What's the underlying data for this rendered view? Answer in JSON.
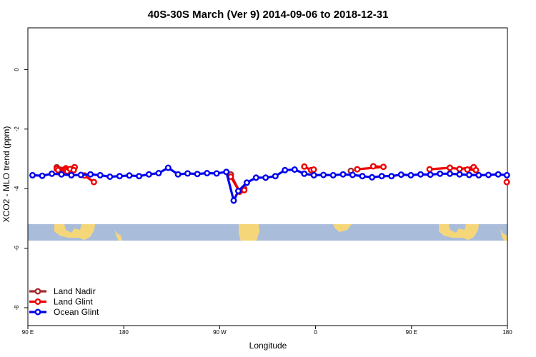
{
  "chart_data": {
    "type": "line",
    "title": "40S-30S March (Ver 9)   2014-09-06 to 2018-12-31",
    "xlabel": "Longitude",
    "ylabel": "XCO2 - MLO trend (ppm)",
    "xlim": [
      90,
      450
    ],
    "ylim": [
      -8.6,
      1.4
    ],
    "x_ticks": [
      {
        "value": 90,
        "label": "90 E"
      },
      {
        "value": 162,
        "label": "180"
      },
      {
        "value": 234,
        "label": "90 W"
      },
      {
        "value": 306,
        "label": "0"
      },
      {
        "value": 378,
        "label": "90 E"
      },
      {
        "value": 450,
        "label": "180"
      }
    ],
    "y_ticks": [
      {
        "value": 0,
        "label": "0"
      },
      {
        "value": -2,
        "label": "-2"
      },
      {
        "value": -4,
        "label": "-4"
      },
      {
        "value": -6,
        "label": "-6"
      },
      {
        "value": -8,
        "label": "-8"
      }
    ],
    "legend_position": "bottom-left",
    "land_color": "#f5d77a",
    "ocean_color": "#a9bddb",
    "series": [
      {
        "name": "Land Nadir",
        "color": "#a52a2a",
        "segments": [
          [
            [
              111.7,
              -3.28
            ],
            [
              118.5,
              -3.32
            ],
            [
              125.1,
              -3.28
            ]
          ],
          [
            [
              242.3,
              -3.52
            ],
            [
              248.9,
              -4.1
            ],
            [
              252.4,
              -4.0
            ]
          ],
          [
            [
              332.5,
              -3.4
            ]
          ],
          [
            [
              406.8,
              -3.3
            ],
            [
              414.1,
              -3.34
            ],
            [
              424.7,
              -3.28
            ]
          ]
        ]
      },
      {
        "name": "Land Glint",
        "color": "#ee0000",
        "segments": [
          [
            [
              111.7,
              -3.33
            ],
            [
              118.5,
              -3.32
            ],
            [
              125.1,
              -3.28
            ]
          ],
          [
            [
              111.7,
              -3.33
            ],
            [
              112.7,
              -3.38
            ],
            [
              118.5,
              -3.38
            ],
            [
              119.5,
              -3.42
            ]
          ],
          [
            [
              121.7,
              -3.34
            ],
            [
              124.4,
              -3.38
            ]
          ],
          [
            [
              132.5,
              -3.56
            ],
            [
              139.6,
              -3.78
            ]
          ],
          [
            [
              242.3,
              -3.6
            ],
            [
              248.9,
              -4.1
            ],
            [
              252.4,
              -4.05
            ]
          ],
          [
            [
              297.5,
              -3.26
            ],
            [
              302.6,
              -3.38
            ],
            [
              304.6,
              -3.36
            ]
          ],
          [
            [
              337.3,
              -3.35
            ],
            [
              356.9,
              -3.27
            ],
            [
              349.3,
              -3.25
            ]
          ],
          [
            [
              391.6,
              -3.35
            ],
            [
              406.8,
              -3.3
            ],
            [
              414.1,
              -3.34
            ],
            [
              424.7,
              -3.28
            ]
          ],
          [
            [
              419.9,
              -3.36
            ],
            [
              426.4,
              -3.38
            ]
          ],
          [
            [
              449.5,
              -3.78
            ]
          ]
        ]
      },
      {
        "name": "Ocean Glint",
        "color": "#0000ee",
        "segments": [
          [
            [
              93.5,
              -3.55
            ],
            [
              100.8,
              -3.57
            ],
            [
              108.0,
              -3.5
            ],
            [
              115.2,
              -3.52
            ],
            [
              122.6,
              -3.55
            ],
            [
              129.8,
              -3.54
            ],
            [
              137.0,
              -3.52
            ],
            [
              144.3,
              -3.55
            ],
            [
              151.6,
              -3.6
            ],
            [
              158.9,
              -3.58
            ],
            [
              166.2,
              -3.56
            ],
            [
              173.5,
              -3.58
            ],
            [
              180.9,
              -3.52
            ],
            [
              188.2,
              -3.48
            ],
            [
              195.3,
              -3.3
            ],
            [
              202.7,
              -3.52
            ],
            [
              209.9,
              -3.49
            ],
            [
              217.2,
              -3.51
            ],
            [
              224.5,
              -3.48
            ],
            [
              231.7,
              -3.49
            ],
            [
              239.0,
              -3.44
            ],
            [
              244.5,
              -4.4
            ],
            [
              248.0,
              -4.08
            ],
            [
              254.4,
              -3.8
            ],
            [
              261.3,
              -3.63
            ],
            [
              268.5,
              -3.63
            ],
            [
              275.8,
              -3.58
            ],
            [
              283.0,
              -3.38
            ],
            [
              290.3,
              -3.36
            ],
            [
              297.5,
              -3.5
            ],
            [
              304.7,
              -3.55
            ],
            [
              311.9,
              -3.54
            ],
            [
              319.2,
              -3.55
            ],
            [
              326.6,
              -3.52
            ],
            [
              333.8,
              -3.54
            ],
            [
              341.1,
              -3.58
            ],
            [
              348.4,
              -3.62
            ],
            [
              355.7,
              -3.58
            ],
            [
              363.0,
              -3.58
            ],
            [
              370.2,
              -3.53
            ],
            [
              377.5,
              -3.55
            ],
            [
              384.8,
              -3.52
            ],
            [
              392.1,
              -3.53
            ],
            [
              399.4,
              -3.5
            ],
            [
              406.8,
              -3.5
            ],
            [
              414.1,
              -3.52
            ],
            [
              421.3,
              -3.54
            ],
            [
              428.5,
              -3.55
            ],
            [
              435.8,
              -3.54
            ],
            [
              443.1,
              -3.52
            ],
            [
              449.6,
              -3.55
            ]
          ]
        ]
      }
    ]
  }
}
